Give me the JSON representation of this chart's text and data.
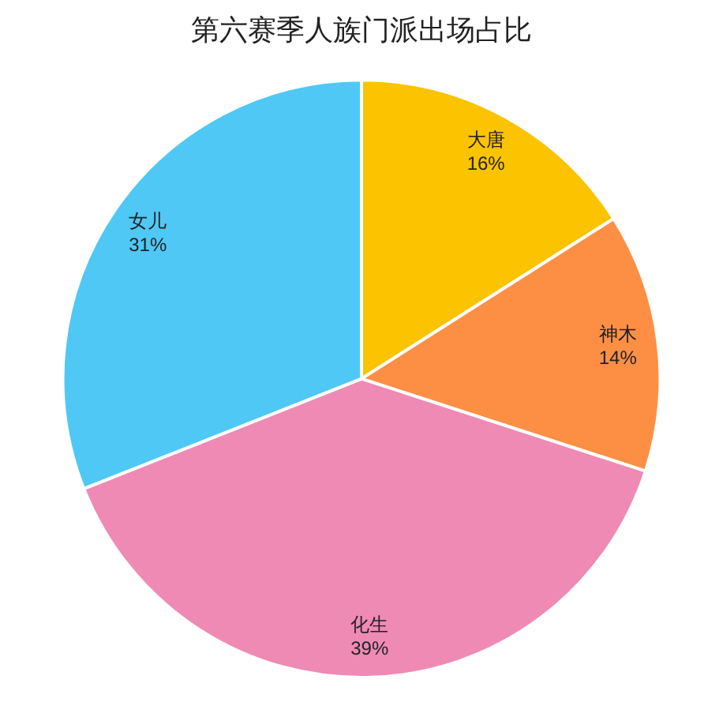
{
  "chart_data": {
    "type": "pie",
    "title": "第六赛季人族门派出场占比",
    "categories": [
      "大唐",
      "神木",
      "化生",
      "女儿"
    ],
    "values": [
      16,
      14,
      39,
      31
    ],
    "value_labels": [
      "16%",
      "14%",
      "39%",
      "31%"
    ],
    "colors": [
      "#fbc300",
      "#fd8f45",
      "#ef8ab5",
      "#4fc8f5"
    ]
  }
}
